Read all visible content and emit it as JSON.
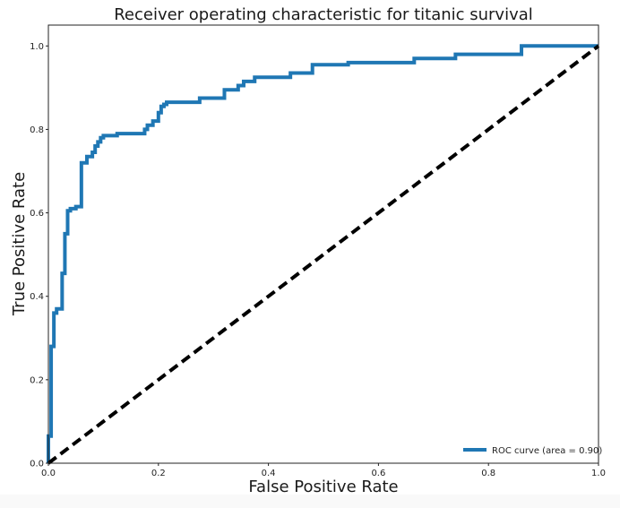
{
  "chart_data": {
    "type": "line",
    "title": "Receiver operating characteristic for titanic survival",
    "xlabel": "False Positive Rate",
    "ylabel": "True Positive Rate",
    "xlim": [
      0.0,
      1.0
    ],
    "ylim": [
      0.0,
      1.05
    ],
    "xticks": [
      "0.0",
      "0.2",
      "0.4",
      "0.6",
      "0.8",
      "1.0"
    ],
    "yticks": [
      "0.0",
      "0.2",
      "0.4",
      "0.6",
      "0.8",
      "1.0"
    ],
    "grid": false,
    "legend_position": "lower-right",
    "series": [
      {
        "name": "ROC curve (area = 0.90)",
        "color": "#1f77b4",
        "style": "solid",
        "x": [
          0.0,
          0.0,
          0.005,
          0.005,
          0.01,
          0.01,
          0.015,
          0.015,
          0.025,
          0.025,
          0.03,
          0.03,
          0.035,
          0.035,
          0.04,
          0.04,
          0.05,
          0.05,
          0.06,
          0.06,
          0.07,
          0.07,
          0.08,
          0.08,
          0.085,
          0.085,
          0.09,
          0.09,
          0.095,
          0.095,
          0.1,
          0.1,
          0.125,
          0.125,
          0.175,
          0.175,
          0.18,
          0.18,
          0.19,
          0.19,
          0.2,
          0.2,
          0.205,
          0.205,
          0.21,
          0.21,
          0.215,
          0.215,
          0.275,
          0.275,
          0.32,
          0.32,
          0.345,
          0.345,
          0.355,
          0.355,
          0.375,
          0.375,
          0.44,
          0.44,
          0.48,
          0.48,
          0.545,
          0.545,
          0.665,
          0.665,
          0.74,
          0.74,
          0.86,
          0.86,
          1.0
        ],
        "y": [
          0.0,
          0.065,
          0.065,
          0.28,
          0.28,
          0.36,
          0.36,
          0.37,
          0.37,
          0.455,
          0.455,
          0.55,
          0.55,
          0.605,
          0.605,
          0.61,
          0.61,
          0.615,
          0.615,
          0.72,
          0.72,
          0.735,
          0.735,
          0.745,
          0.745,
          0.76,
          0.76,
          0.77,
          0.77,
          0.78,
          0.78,
          0.785,
          0.785,
          0.79,
          0.79,
          0.8,
          0.8,
          0.81,
          0.81,
          0.82,
          0.82,
          0.84,
          0.84,
          0.855,
          0.855,
          0.86,
          0.86,
          0.865,
          0.865,
          0.875,
          0.875,
          0.895,
          0.895,
          0.905,
          0.905,
          0.915,
          0.915,
          0.925,
          0.925,
          0.935,
          0.935,
          0.955,
          0.955,
          0.96,
          0.96,
          0.97,
          0.97,
          0.98,
          0.98,
          1.0,
          1.0
        ]
      },
      {
        "name": "",
        "color": "#000000",
        "style": "dashed",
        "x": [
          0.0,
          1.0
        ],
        "y": [
          0.0,
          1.0
        ]
      }
    ]
  }
}
